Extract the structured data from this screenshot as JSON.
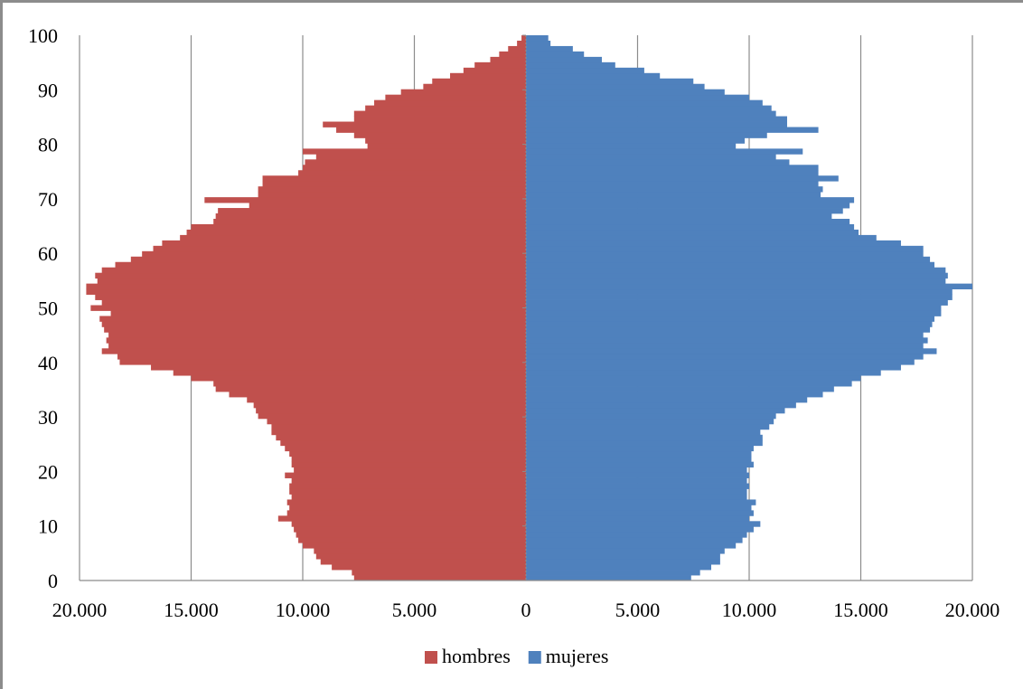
{
  "chart_data": {
    "type": "bar",
    "orientation": "horizontal",
    "subtype": "population pyramid",
    "title": "",
    "xlabel": "",
    "ylabel": "",
    "xlim": [
      -20000,
      20000
    ],
    "ylim": [
      0,
      100
    ],
    "x_ticks": [
      "20.000",
      "15.000",
      "10.000",
      "5.000",
      "0",
      "5.000",
      "10.000",
      "15.000",
      "20.000"
    ],
    "y_ticks": [
      "0",
      "10",
      "20",
      "30",
      "40",
      "50",
      "60",
      "70",
      "80",
      "90",
      "100"
    ],
    "grid": "vertical lines",
    "legend_position": "bottom",
    "categories": [
      0,
      1,
      2,
      3,
      4,
      5,
      6,
      7,
      8,
      9,
      10,
      11,
      12,
      13,
      14,
      15,
      16,
      17,
      18,
      19,
      20,
      21,
      22,
      23,
      24,
      25,
      26,
      27,
      28,
      29,
      30,
      31,
      32,
      33,
      34,
      35,
      36,
      37,
      38,
      39,
      40,
      41,
      42,
      43,
      44,
      45,
      46,
      47,
      48,
      49,
      50,
      51,
      52,
      53,
      54,
      55,
      56,
      57,
      58,
      59,
      60,
      61,
      62,
      63,
      64,
      65,
      66,
      67,
      68,
      69,
      70,
      71,
      72,
      73,
      74,
      75,
      76,
      77,
      78,
      79,
      80,
      81,
      82,
      83,
      84,
      85,
      86,
      87,
      88,
      89,
      90,
      91,
      92,
      93,
      94,
      95,
      96,
      97,
      98,
      99,
      100
    ],
    "series": [
      {
        "name": "hombres",
        "color": "#c0504d",
        "values": [
          7700,
          7800,
          8700,
          9200,
          9400,
          9500,
          10000,
          10200,
          10300,
          10400,
          10500,
          11100,
          10700,
          10600,
          10700,
          10500,
          10600,
          10600,
          10500,
          10800,
          10400,
          10500,
          10500,
          10600,
          10800,
          11000,
          11200,
          11400,
          11400,
          11600,
          12000,
          12100,
          12200,
          12500,
          13300,
          13900,
          14000,
          15000,
          15800,
          16800,
          18200,
          18300,
          19000,
          18700,
          18800,
          18700,
          18900,
          19000,
          19100,
          18600,
          19500,
          19000,
          19300,
          19700,
          19700,
          19200,
          19300,
          19000,
          18400,
          17700,
          17200,
          16700,
          16300,
          15500,
          15200,
          15000,
          14000,
          13900,
          13800,
          12400,
          14400,
          12000,
          12000,
          11800,
          11800,
          10200,
          10000,
          9900,
          9400,
          10000,
          7100,
          7200,
          7700,
          8500,
          9100,
          7700,
          7700,
          7200,
          6800,
          6300,
          5600,
          4600,
          4200,
          3400,
          2800,
          2300,
          1600,
          1200,
          800,
          400,
          200
        ],
        "display_values": [
          7700,
          7800,
          8700,
          9200,
          9400,
          9500,
          10000,
          10200,
          10300,
          10400,
          10500,
          11100,
          10700,
          10600,
          10700,
          10500,
          10600,
          10600,
          10500,
          10800,
          10400,
          10500,
          10500,
          10600,
          10800,
          11000,
          11200,
          11400,
          11400,
          11600,
          12000,
          12100,
          12200,
          12500,
          13300,
          13900,
          14000,
          15000,
          15800,
          16800,
          18200,
          18300,
          19000,
          18700,
          18800,
          18700,
          18900,
          19000,
          19100,
          18600,
          19500,
          19000,
          19300,
          19700,
          19700,
          19200,
          19300,
          19000,
          18400,
          17700,
          17200,
          16700,
          16300,
          15500,
          15200,
          15000,
          14000,
          13900,
          13800,
          12400,
          14400,
          12000,
          12000,
          11800,
          11800,
          10200,
          10000,
          9900,
          9400,
          10000,
          7100,
          7200,
          7700,
          8500,
          9100,
          7700,
          7700,
          7200,
          6800,
          6300,
          5600,
          4600,
          4200,
          3400,
          2800,
          2300,
          1600,
          1200,
          800,
          400,
          200
        ]
      },
      {
        "name": "mujeres",
        "color": "#4f81bd",
        "values": [
          7400,
          7800,
          8300,
          8700,
          8700,
          8900,
          9400,
          9700,
          9900,
          10200,
          10500,
          10000,
          10200,
          10100,
          10300,
          9900,
          9900,
          10000,
          9900,
          10000,
          9900,
          10200,
          10100,
          10100,
          10200,
          10600,
          10600,
          10500,
          10900,
          11100,
          11200,
          11600,
          12100,
          12600,
          13300,
          13800,
          14600,
          15000,
          15900,
          16800,
          17400,
          17800,
          18400,
          17800,
          18000,
          17800,
          18100,
          18200,
          18300,
          18600,
          18600,
          18900,
          19100,
          19100,
          20000,
          18800,
          18900,
          18800,
          18300,
          18100,
          17800,
          17800,
          16800,
          15700,
          14900,
          14700,
          14500,
          13700,
          14200,
          14500,
          14700,
          13200,
          13300,
          13100,
          14000,
          13100,
          13100,
          11800,
          11200,
          12400,
          9400,
          9800,
          10800,
          13100,
          11700,
          11700,
          11200,
          11000,
          10600,
          10000,
          8900,
          8000,
          7500,
          6000,
          5300,
          4000,
          3400,
          2600,
          2100,
          1100,
          1000
        ]
      }
    ]
  }
}
